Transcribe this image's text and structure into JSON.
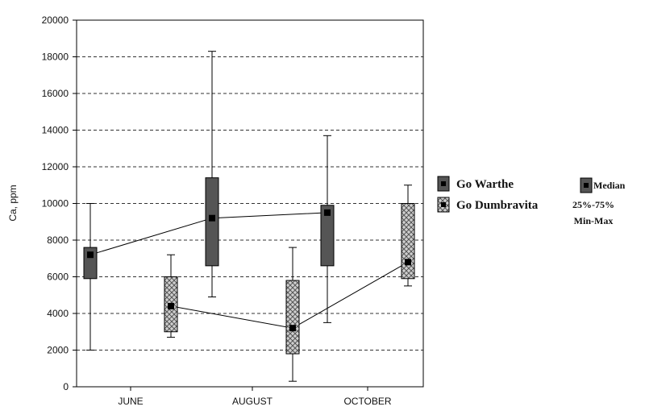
{
  "chart_data": {
    "type": "box",
    "ylabel": "Ca, ppm",
    "ylim": [
      0,
      20000
    ],
    "yticks": [
      0,
      2000,
      4000,
      6000,
      8000,
      10000,
      12000,
      14000,
      16000,
      18000,
      20000
    ],
    "categories": [
      "JUNE",
      "AUGUST",
      "OCTOBER"
    ],
    "grid": true,
    "legend_position": "right",
    "series": [
      {
        "name": "Go Warthe",
        "color": "#555555",
        "pattern": "solid",
        "median": [
          7200,
          9200,
          9500
        ],
        "q1": [
          5900,
          6600,
          6600
        ],
        "q3": [
          7600,
          11400,
          9900
        ],
        "min": [
          2000,
          4900,
          3500
        ],
        "max": [
          10000,
          18300,
          13700
        ]
      },
      {
        "name": "Go Dumbravita",
        "color": "#aaaaaa",
        "pattern": "crosshatch",
        "median": [
          4400,
          3200,
          6800
        ],
        "q1": [
          3000,
          1800,
          5900
        ],
        "q3": [
          6000,
          5800,
          10000
        ],
        "min": [
          2700,
          300,
          5500
        ],
        "max": [
          7200,
          7600,
          11000
        ]
      }
    ],
    "legend_stats": [
      "Median",
      "25%-75%",
      "Min-Max"
    ]
  }
}
